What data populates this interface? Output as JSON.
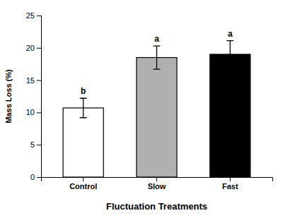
{
  "chart_data": {
    "type": "bar",
    "categories": [
      "Control",
      "Slow",
      "Fast"
    ],
    "values": [
      10.7,
      18.5,
      19.0
    ],
    "errors": [
      1.5,
      1.8,
      2.1
    ],
    "colors": [
      "#ffffff",
      "#b0b0b0",
      "#000000"
    ],
    "annotations": [
      "b",
      "a",
      "a"
    ],
    "xlabel": "Fluctuation Treatments",
    "ylabel": "Mass Loss (%)",
    "ylim": [
      0,
      25
    ],
    "yticks": [
      0,
      5,
      10,
      15,
      20,
      25
    ]
  }
}
